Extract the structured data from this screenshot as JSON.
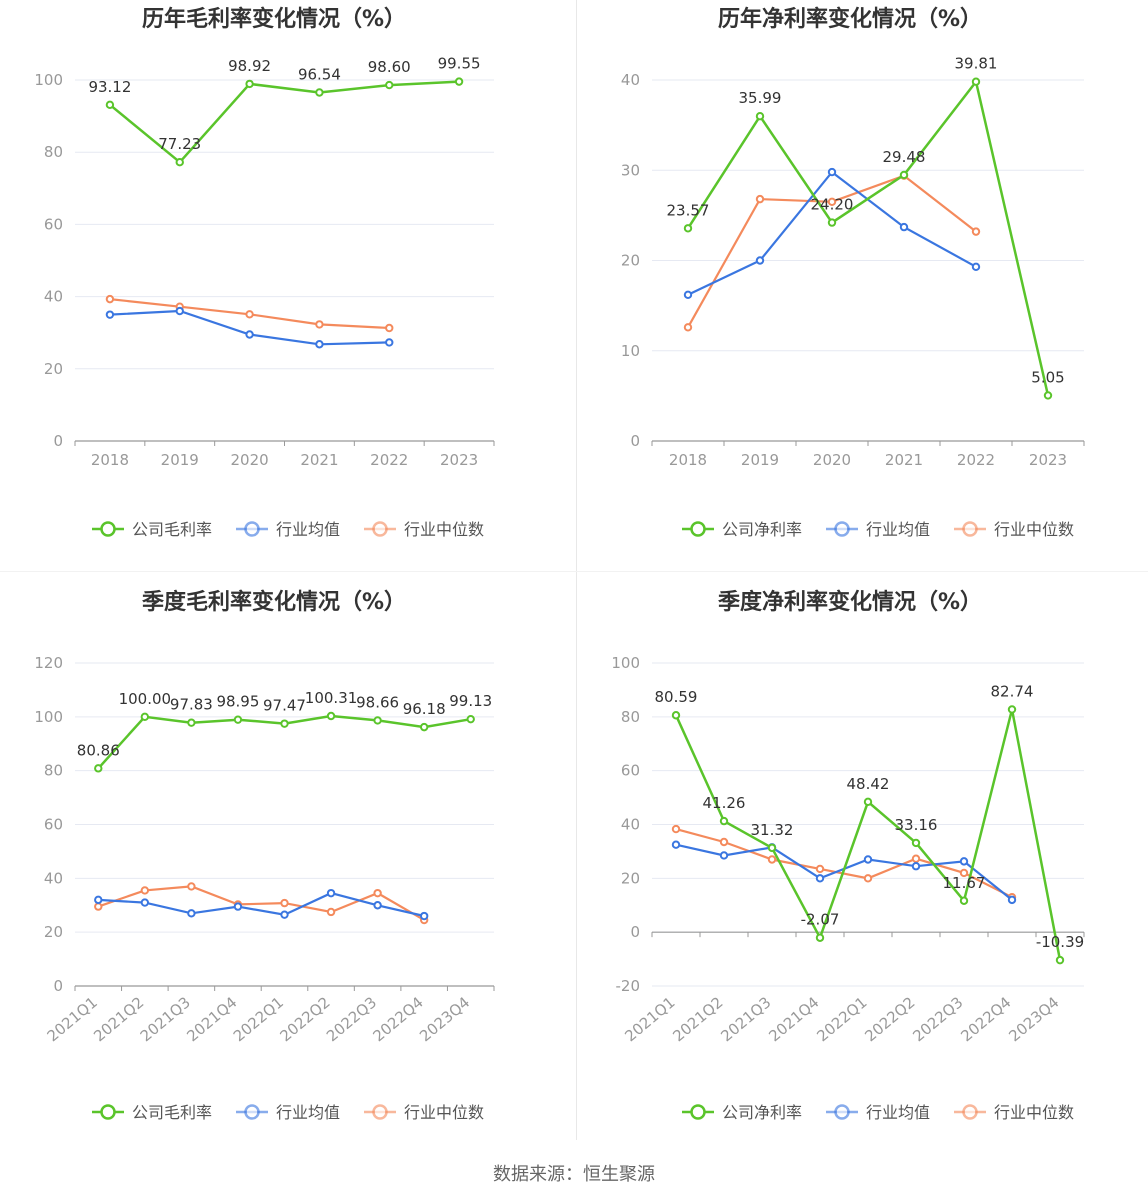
{
  "footer": {
    "source": "数据来源：恒生聚源"
  },
  "colors": {
    "company": "#5ac42b",
    "avg": "#3a76e0",
    "median": "#f48a5c",
    "grid": "#e6e9f2",
    "axis": "#999999"
  },
  "chart_data": [
    {
      "id": "annual-gross",
      "type": "line",
      "title": "历年毛利率变化情况（%）",
      "categories": [
        "2018",
        "2019",
        "2020",
        "2021",
        "2022",
        "2023"
      ],
      "ylim": [
        0,
        100
      ],
      "yticks": [
        0,
        20,
        40,
        60,
        80,
        100
      ],
      "x_label_rotate": false,
      "grid": true,
      "legend_position": "bottom",
      "series": [
        {
          "name": "公司毛利率",
          "role": "company",
          "values": [
            93.12,
            77.23,
            98.92,
            96.54,
            98.6,
            99.55
          ],
          "labels": [
            "93.12",
            "77.23",
            "98.92",
            "96.54",
            "98.60",
            "99.55"
          ]
        },
        {
          "name": "行业均值",
          "role": "avg",
          "values": [
            35.0,
            36.0,
            29.5,
            26.8,
            27.3,
            null
          ]
        },
        {
          "name": "行业中位数",
          "role": "median",
          "values": [
            39.3,
            37.2,
            35.1,
            32.3,
            31.3,
            null
          ]
        }
      ]
    },
    {
      "id": "annual-net",
      "type": "line",
      "title": "历年净利率变化情况（%）",
      "categories": [
        "2018",
        "2019",
        "2020",
        "2021",
        "2022",
        "2023"
      ],
      "ylim": [
        0,
        40
      ],
      "yticks": [
        0,
        10,
        20,
        30,
        40
      ],
      "x_label_rotate": false,
      "grid": true,
      "legend_position": "bottom",
      "series": [
        {
          "name": "公司净利率",
          "role": "company",
          "values": [
            23.57,
            35.99,
            24.2,
            29.48,
            39.81,
            5.05
          ],
          "labels": [
            "23.57",
            "35.99",
            "24.20",
            "29.48",
            "39.81",
            "5.05"
          ]
        },
        {
          "name": "行业均值",
          "role": "avg",
          "values": [
            16.2,
            20.0,
            29.8,
            23.7,
            19.3,
            null
          ]
        },
        {
          "name": "行业中位数",
          "role": "median",
          "values": [
            12.6,
            26.8,
            26.5,
            29.4,
            23.2,
            null
          ]
        }
      ]
    },
    {
      "id": "quarterly-gross",
      "type": "line",
      "title": "季度毛利率变化情况（%）",
      "categories": [
        "2021Q1",
        "2021Q2",
        "2021Q3",
        "2021Q4",
        "2022Q1",
        "2022Q2",
        "2022Q3",
        "2022Q4",
        "2023Q4"
      ],
      "ylim": [
        0,
        120
      ],
      "yticks": [
        0,
        20,
        40,
        60,
        80,
        100,
        120
      ],
      "x_label_rotate": true,
      "grid": true,
      "legend_position": "bottom",
      "series": [
        {
          "name": "公司毛利率",
          "role": "company",
          "values": [
            80.86,
            100.0,
            97.83,
            98.95,
            97.47,
            100.31,
            98.66,
            96.18,
            99.13
          ],
          "labels": [
            "80.86",
            "100.00",
            "97.83",
            "98.95",
            "97.47",
            "100.31",
            "98.66",
            "96.18",
            "99.13"
          ]
        },
        {
          "name": "行业均值",
          "role": "avg",
          "values": [
            32.0,
            31.0,
            27.0,
            29.5,
            26.5,
            34.5,
            30.0,
            26.0,
            null
          ]
        },
        {
          "name": "行业中位数",
          "role": "median",
          "values": [
            29.5,
            35.5,
            37.0,
            30.3,
            30.8,
            27.5,
            34.5,
            24.5,
            null
          ]
        }
      ]
    },
    {
      "id": "quarterly-net",
      "type": "line",
      "title": "季度净利率变化情况（%）",
      "categories": [
        "2021Q1",
        "2021Q2",
        "2021Q3",
        "2021Q4",
        "2022Q1",
        "2022Q2",
        "2022Q3",
        "2022Q4",
        "2023Q4"
      ],
      "ylim": [
        -20,
        100
      ],
      "yticks": [
        -20,
        0,
        20,
        40,
        60,
        80,
        100
      ],
      "x_label_rotate": true,
      "grid": true,
      "legend_position": "bottom",
      "series": [
        {
          "name": "公司净利率",
          "role": "company",
          "values": [
            80.59,
            41.26,
            31.32,
            -2.07,
            48.42,
            33.16,
            11.67,
            82.74,
            -10.39
          ],
          "labels": [
            "80.59",
            "41.26",
            "31.32",
            "-2.07",
            "48.42",
            "33.16",
            "11.67",
            "82.74",
            "-10.39"
          ]
        },
        {
          "name": "行业均值",
          "role": "avg",
          "values": [
            32.5,
            28.5,
            31.5,
            20.0,
            27.0,
            24.5,
            26.3,
            12.0,
            null
          ]
        },
        {
          "name": "行业中位数",
          "role": "median",
          "values": [
            38.3,
            33.5,
            27.0,
            23.5,
            20.0,
            27.3,
            22.0,
            13.0,
            null
          ]
        }
      ]
    }
  ]
}
